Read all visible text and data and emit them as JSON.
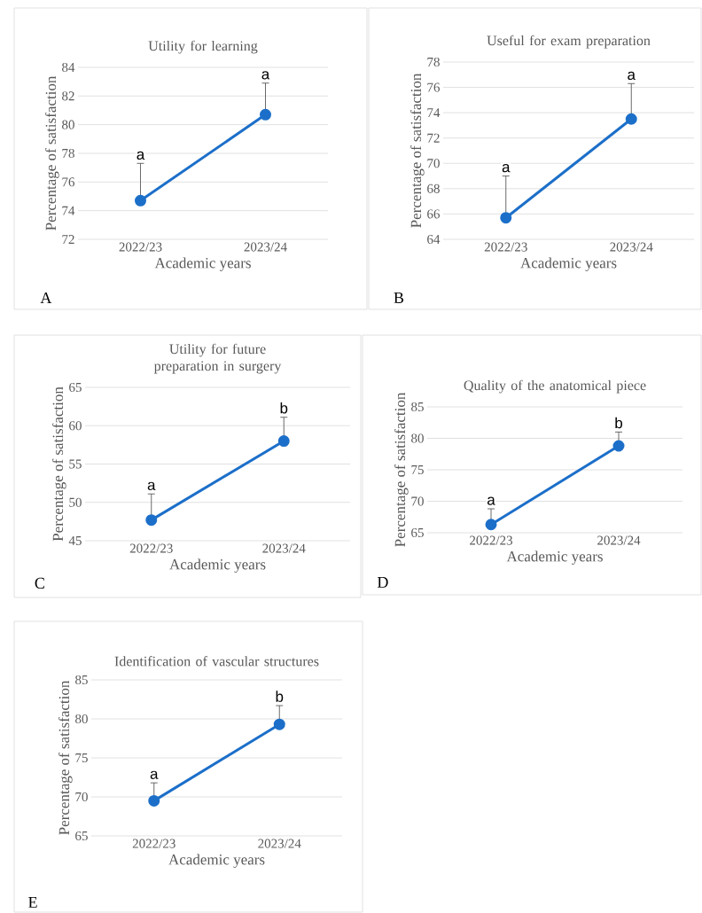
{
  "chart_data": [
    {
      "type": "line",
      "title": "Utility for learning",
      "xlabel": "Academic years",
      "ylabel": "Percentage of satisfaction",
      "categories": [
        "2022/23",
        "2023/24"
      ],
      "series": [
        {
          "color": "#1c6fc9",
          "values": [
            74.7,
            80.7
          ],
          "errors": [
            [
              74.7,
              77.3
            ],
            [
              80.7,
              82.9
            ]
          ]
        }
      ],
      "ylim": [
        72,
        84
      ],
      "yticks": [
        72,
        74,
        76,
        78,
        80,
        82,
        84
      ],
      "grid": "y",
      "marker": "circle",
      "line_style": "solid",
      "annotations": [
        {
          "text": "a",
          "x": "2022/23",
          "y": 77.3
        },
        {
          "text": "a",
          "x": "2023/24",
          "y": 82.9
        },
        "A"
      ]
    },
    {
      "type": "line",
      "title": "Useful for exam preparation",
      "xlabel": "Academic years",
      "ylabel": "Percentage of satisfaction",
      "categories": [
        "2022/23",
        "2023/24"
      ],
      "series": [
        {
          "color": "#1c6fc9",
          "values": [
            65.7,
            73.5
          ],
          "errors": [
            [
              65.7,
              69.0
            ],
            [
              73.5,
              76.3
            ]
          ]
        }
      ],
      "ylim": [
        64,
        78
      ],
      "yticks": [
        64,
        66,
        68,
        70,
        72,
        74,
        76,
        78
      ],
      "grid": "y",
      "marker": "circle",
      "line_style": "solid",
      "annotations": [
        {
          "text": "a",
          "x": "2022/23",
          "y": 69.0
        },
        {
          "text": "a",
          "x": "2023/24",
          "y": 76.3
        },
        "B"
      ]
    },
    {
      "type": "line",
      "title": "Utility for future preparation in surgery",
      "xlabel": "Academic years",
      "ylabel": "Percentage of satisfaction",
      "categories": [
        "2022/23",
        "2023/24"
      ],
      "series": [
        {
          "color": "#1c6fc9",
          "values": [
            47.7,
            58.0
          ],
          "errors": [
            [
              47.7,
              51.1
            ],
            [
              58.0,
              61.1
            ]
          ]
        }
      ],
      "ylim": [
        45,
        65
      ],
      "yticks": [
        45,
        50,
        55,
        60,
        65
      ],
      "grid": "y",
      "marker": "circle",
      "line_style": "solid",
      "annotations": [
        {
          "text": "a",
          "x": "2022/23",
          "y": 51.1
        },
        {
          "text": "b",
          "x": "2023/24",
          "y": 61.1
        },
        "C"
      ]
    },
    {
      "type": "line",
      "title": "Quality of the anatomical piece",
      "xlabel": "Academic years",
      "ylabel": "Percentage of satisfaction",
      "categories": [
        "2022/23",
        "2023/24"
      ],
      "series": [
        {
          "color": "#1c6fc9",
          "values": [
            66.3,
            78.8
          ],
          "errors": [
            [
              66.3,
              68.8
            ],
            [
              78.8,
              81.0
            ]
          ]
        }
      ],
      "ylim": [
        65,
        85
      ],
      "yticks": [
        65,
        70,
        75,
        80,
        85
      ],
      "grid": "y",
      "marker": "circle",
      "line_style": "solid",
      "annotations": [
        {
          "text": "a",
          "x": "2022/23",
          "y": 68.8
        },
        {
          "text": "b",
          "x": "2023/24",
          "y": 81.0
        },
        "D"
      ]
    },
    {
      "type": "line",
      "title": "Identification of vascular structures",
      "xlabel": "Academic years",
      "ylabel": "Percentage of satisfaction",
      "categories": [
        "2022/23",
        "2023/24"
      ],
      "series": [
        {
          "color": "#1c6fc9",
          "values": [
            69.5,
            79.3
          ],
          "errors": [
            [
              69.5,
              71.8
            ],
            [
              79.3,
              81.7
            ]
          ]
        }
      ],
      "ylim": [
        65,
        85
      ],
      "yticks": [
        65,
        70,
        75,
        80,
        85
      ],
      "grid": "y",
      "marker": "circle",
      "line_style": "solid",
      "annotations": [
        {
          "text": "a",
          "x": "2022/23",
          "y": 71.8
        },
        {
          "text": "b",
          "x": "2023/24",
          "y": 81.7
        },
        "E"
      ]
    }
  ]
}
